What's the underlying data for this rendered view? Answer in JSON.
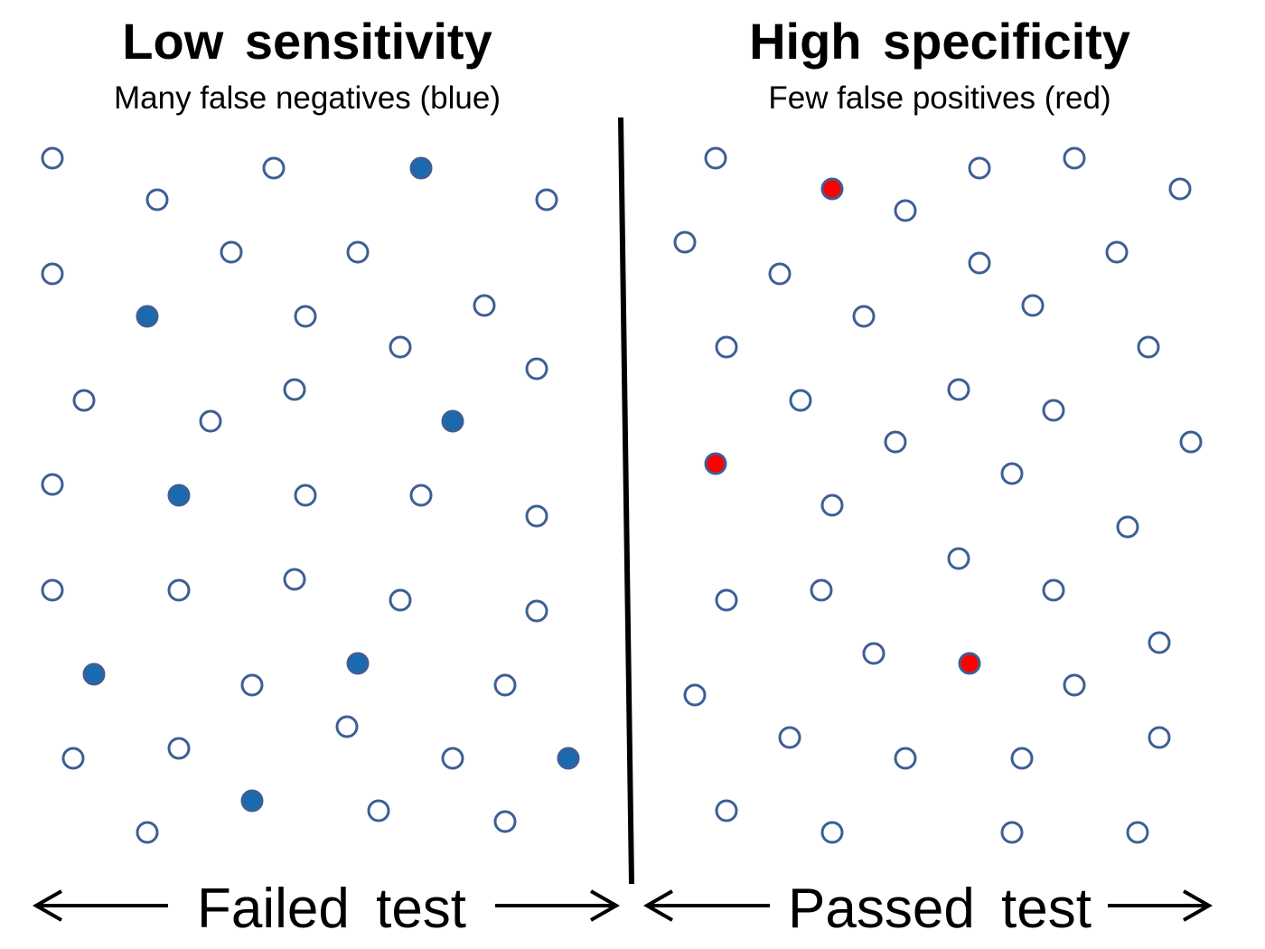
{
  "left_panel": {
    "title": "Low sensitivity",
    "subtitle": "Many false negatives (blue)",
    "bottom_label": "Failed test",
    "highlight_color": "#1a6ab0",
    "circles": {
      "total": 44,
      "filled": 8
    }
  },
  "right_panel": {
    "title": "High specificity",
    "subtitle": "Few false positives (red)",
    "bottom_label": "Passed test",
    "highlight_color": "#ff0000",
    "circles": {
      "total": 44,
      "filled": 3
    }
  },
  "colors": {
    "circle_outline": "#3d5f95",
    "divider": "#000000",
    "arrow": "#000000"
  },
  "icons": {
    "left_arrow": "arrow-left-icon",
    "right_arrow": "arrow-right-icon"
  }
}
